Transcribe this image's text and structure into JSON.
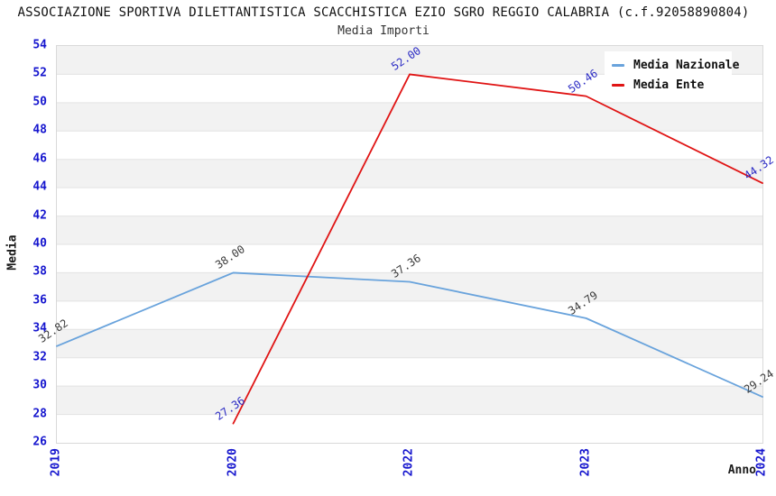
{
  "chart_data": {
    "type": "line",
    "title": "ASSOCIAZIONE SPORTIVA DILETTANTISTICA SCACCHISTICA EZIO SGRO REGGIO CALABRIA (c.f.92058890804)",
    "subtitle": "Media Importi",
    "xlabel": "Anno",
    "ylabel": "Media",
    "categories": [
      "2019",
      "2020",
      "2022",
      "2023",
      "2024"
    ],
    "series": [
      {
        "name": "Media Nazionale",
        "color": "#69a3dc",
        "label_color": "#3c3c3c",
        "values": [
          32.82,
          38.0,
          37.36,
          34.79,
          29.24
        ]
      },
      {
        "name": "Media Ente",
        "color": "#e01414",
        "label_color": "#2b2bc4",
        "values": [
          null,
          27.36,
          52.0,
          50.46,
          44.32
        ]
      }
    ],
    "ylim": [
      26,
      54
    ],
    "ytick_step": 2,
    "grid": "horizontal",
    "legend_position": "top-right",
    "colors": {
      "tick_text": "#1515ce",
      "gridline": "#e3e3e3",
      "band": "#f2f2f2",
      "plot_border": "#d9d9d9"
    }
  }
}
